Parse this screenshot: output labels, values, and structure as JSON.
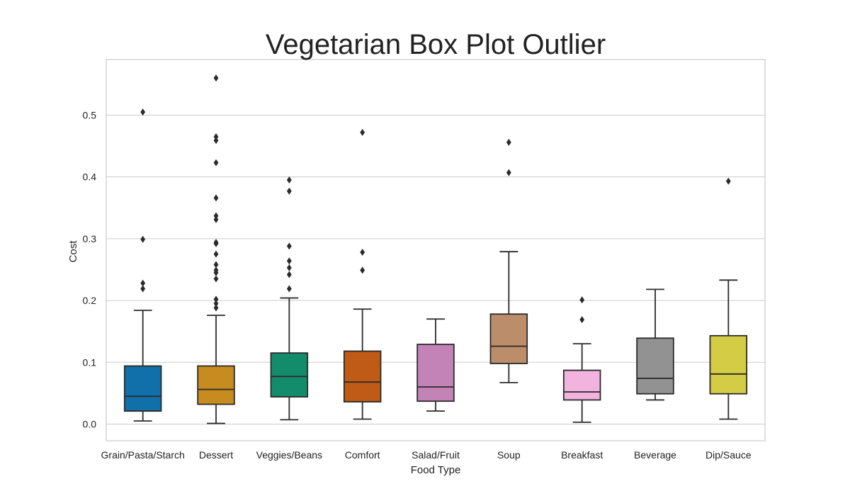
{
  "chart_data": {
    "type": "box",
    "title": "Vegetarian Box Plot Outlier",
    "xlabel": "Food Type",
    "ylabel": "Cost",
    "ylim": [
      -0.027,
      0.59
    ],
    "yticks": [
      0.0,
      0.1,
      0.2,
      0.3,
      0.4,
      0.5
    ],
    "ytick_labels": [
      "0.0",
      "0.1",
      "0.2",
      "0.3",
      "0.4",
      "0.5"
    ],
    "grid": "horizontal",
    "categories": [
      "Grain/Pasta/Starch",
      "Dessert",
      "Veggies/Beans",
      "Comfort",
      "Salad/Fruit",
      "Soup",
      "Breakfast",
      "Beverage",
      "Dip/Sauce"
    ],
    "boxes": [
      {
        "category": "Grain/Pasta/Starch",
        "color": "#1170aa",
        "whisker_low": 0.005,
        "q1": 0.021,
        "median": 0.045,
        "q3": 0.094,
        "whisker_high": 0.184,
        "outliers": [
          0.219,
          0.228,
          0.299,
          0.505
        ]
      },
      {
        "category": "Dessert",
        "color": "#c88b1f",
        "whisker_low": 0.001,
        "q1": 0.032,
        "median": 0.056,
        "q3": 0.094,
        "whisker_high": 0.176,
        "outliers": [
          0.188,
          0.195,
          0.202,
          0.235,
          0.245,
          0.249,
          0.258,
          0.275,
          0.292,
          0.294,
          0.331,
          0.337,
          0.366,
          0.423,
          0.459,
          0.465,
          0.56
        ]
      },
      {
        "category": "Veggies/Beans",
        "color": "#138c6b",
        "whisker_low": 0.007,
        "q1": 0.044,
        "median": 0.077,
        "q3": 0.115,
        "whisker_high": 0.204,
        "outliers": [
          0.219,
          0.242,
          0.253,
          0.264,
          0.288,
          0.377,
          0.395
        ]
      },
      {
        "category": "Comfort",
        "color": "#bf5b17",
        "whisker_low": 0.008,
        "q1": 0.036,
        "median": 0.068,
        "q3": 0.118,
        "whisker_high": 0.186,
        "outliers": [
          0.249,
          0.278,
          0.472
        ]
      },
      {
        "category": "Salad/Fruit",
        "color": "#c483b7",
        "whisker_low": 0.021,
        "q1": 0.037,
        "median": 0.06,
        "q3": 0.129,
        "whisker_high": 0.17,
        "outliers": []
      },
      {
        "category": "Soup",
        "color": "#bc8d6a",
        "whisker_low": 0.067,
        "q1": 0.098,
        "median": 0.126,
        "q3": 0.178,
        "whisker_high": 0.279,
        "outliers": [
          0.407,
          0.456
        ]
      },
      {
        "category": "Breakfast",
        "color": "#f2b3df",
        "whisker_low": 0.003,
        "q1": 0.039,
        "median": 0.052,
        "q3": 0.087,
        "whisker_high": 0.13,
        "outliers": [
          0.169,
          0.201
        ]
      },
      {
        "category": "Beverage",
        "color": "#929292",
        "whisker_low": 0.039,
        "q1": 0.049,
        "median": 0.074,
        "q3": 0.139,
        "whisker_high": 0.218,
        "outliers": []
      },
      {
        "category": "Dip/Sauce",
        "color": "#d5cc45",
        "whisker_low": 0.008,
        "q1": 0.049,
        "median": 0.081,
        "q3": 0.143,
        "whisker_high": 0.233,
        "outliers": [
          0.393
        ]
      }
    ]
  }
}
